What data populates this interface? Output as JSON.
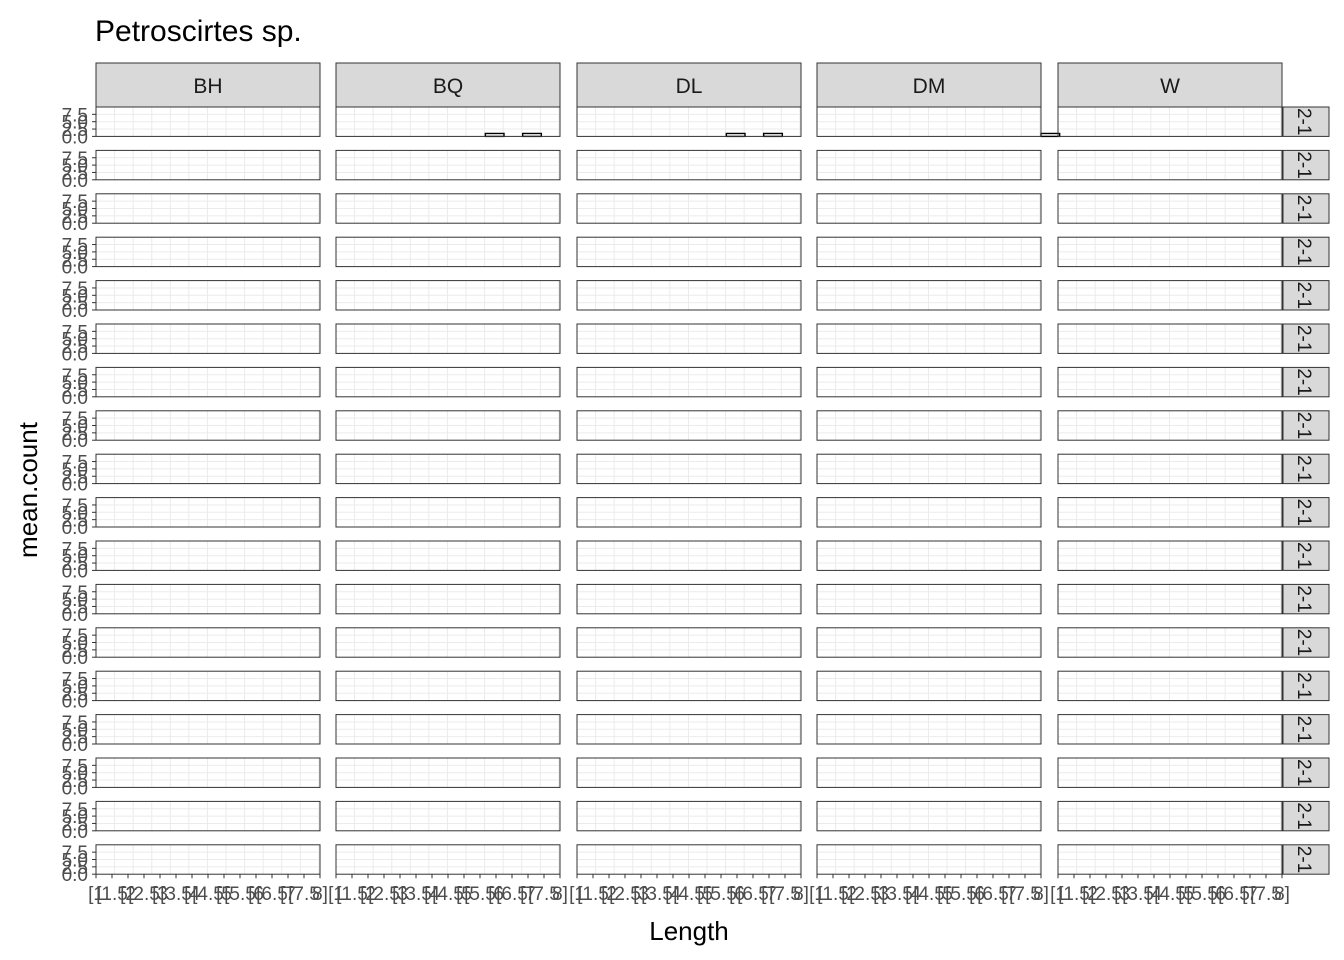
{
  "chart_data": {
    "type": "bar",
    "title": "Petroscirtes sp.",
    "xlabel": "Length",
    "ylabel": "mean.count",
    "ylim": [
      0,
      10
    ],
    "y_ticks": [
      "0.0",
      "2.5",
      "5.0",
      "7.5"
    ],
    "x_tick_labels": [
      "[1",
      "[1.5",
      "[2",
      "[2.5",
      "[3",
      "[3.5",
      "[4",
      "[4.5",
      "[5",
      "[5.5",
      "[6",
      "[6.5",
      "[7",
      "[7.5",
      "8]"
    ],
    "bins": [
      "[1,1.5)",
      "[1.5,2)",
      "[2,2.5)",
      "[2.5,3)",
      "[3,3.5)",
      "[3.5,4)",
      "[4,4.5)",
      "[4.5,5)",
      "[5,5.5)",
      "[5.5,6)",
      "[6,6.5)",
      "[6.5,7)",
      "[7,7.5)",
      "[7.5,8]"
    ],
    "columns": [
      "BH",
      "BQ",
      "DL",
      "DM",
      "W"
    ],
    "row_strip_label": "2-1",
    "grid": true,
    "panels": [
      [
        [
          0,
          0,
          0,
          0,
          0,
          0,
          0,
          0,
          0,
          0,
          0,
          0,
          0,
          0
        ],
        [
          0,
          0,
          0,
          0,
          0,
          0,
          0,
          0,
          1,
          0,
          1,
          0,
          0,
          0
        ],
        [
          0,
          0,
          0,
          0,
          0,
          0,
          0,
          0,
          1,
          0,
          1,
          0,
          0,
          0
        ],
        [
          0,
          0,
          0,
          0,
          0,
          0,
          0,
          0,
          0,
          0,
          0,
          0,
          1,
          0
        ],
        [
          0,
          0,
          0,
          0,
          0,
          0,
          0,
          0,
          0,
          0,
          0,
          0,
          0,
          0
        ]
      ],
      [
        [
          0,
          0,
          0,
          0,
          0,
          0,
          0,
          0,
          0,
          0,
          0,
          0,
          0,
          0
        ],
        [
          0,
          0,
          0,
          0,
          0,
          0,
          0,
          0,
          0,
          0,
          0,
          0,
          0,
          0
        ],
        [
          0,
          0,
          0,
          0,
          0,
          0,
          0,
          0,
          0,
          0,
          0,
          0,
          0,
          0
        ],
        [
          0,
          0,
          0,
          0,
          0,
          0,
          0,
          0,
          0,
          0,
          0,
          0,
          0,
          0
        ],
        [
          0,
          0,
          0,
          0,
          0,
          0,
          0,
          0,
          0,
          0,
          0,
          0,
          0,
          0
        ]
      ],
      [
        [
          0,
          0,
          0,
          0,
          0,
          0,
          0,
          0,
          0,
          0,
          0,
          0,
          0,
          0
        ],
        [
          0,
          0,
          0,
          0,
          0,
          0,
          0,
          0,
          0,
          0,
          0,
          0,
          0,
          0
        ],
        [
          0,
          0,
          0,
          0,
          0,
          0,
          0,
          0,
          0,
          0,
          0,
          0,
          0,
          0
        ],
        [
          0,
          0,
          0,
          0,
          0,
          0,
          0,
          0,
          0,
          0,
          0,
          0,
          0,
          0
        ],
        [
          0,
          0,
          0,
          0,
          0,
          0,
          0,
          0,
          0,
          0,
          0,
          0,
          0,
          0
        ]
      ],
      [
        [
          0,
          0,
          0,
          0,
          0,
          0,
          0,
          0,
          0,
          0,
          0,
          0,
          0,
          0
        ],
        [
          0,
          0,
          0,
          0,
          0,
          0,
          0,
          0,
          0,
          0,
          0,
          0,
          0,
          0
        ],
        [
          0,
          0,
          0,
          0,
          0,
          0,
          0,
          0,
          0,
          0,
          0,
          0,
          0,
          0
        ],
        [
          0,
          0,
          0,
          0,
          0,
          0,
          0,
          0,
          0,
          0,
          0,
          0,
          0,
          0
        ],
        [
          0,
          0,
          0,
          0,
          0,
          0,
          0,
          0,
          0,
          0,
          0,
          0,
          0,
          0
        ]
      ],
      [
        [
          0,
          0,
          0,
          0,
          0,
          0,
          0,
          0,
          0,
          0,
          0,
          0,
          0,
          0
        ],
        [
          0,
          0,
          0,
          0,
          0,
          0,
          0,
          0,
          0,
          0,
          0,
          0,
          0,
          0
        ],
        [
          0,
          0,
          0,
          0,
          0,
          0,
          0,
          0,
          0,
          0,
          0,
          0,
          0,
          0
        ],
        [
          0,
          0,
          0,
          0,
          0,
          0,
          0,
          0,
          0,
          0,
          0,
          0,
          0,
          0
        ],
        [
          0,
          0,
          0,
          0,
          0,
          0,
          0,
          0,
          0,
          0,
          0,
          0,
          0,
          0
        ]
      ],
      [
        [
          0,
          0,
          0,
          0,
          0,
          0,
          0,
          0,
          0,
          0,
          0,
          0,
          0,
          0
        ],
        [
          0,
          0,
          0,
          0,
          0,
          0,
          0,
          0,
          0,
          0,
          0,
          0,
          0,
          0
        ],
        [
          0,
          0,
          0,
          0,
          0,
          0,
          0,
          0,
          0,
          0,
          0,
          0,
          0,
          0
        ],
        [
          0,
          0,
          0,
          0,
          0,
          0,
          0,
          0,
          0,
          0,
          0,
          0,
          0,
          0
        ],
        [
          0,
          0,
          0,
          0,
          0,
          0,
          0,
          0,
          0,
          0,
          0,
          0,
          0,
          0
        ]
      ],
      [
        [
          0,
          0,
          0,
          0,
          0,
          0,
          0,
          0,
          0,
          0,
          0,
          0,
          0,
          0
        ],
        [
          0,
          0,
          0,
          0,
          0,
          0,
          0,
          0,
          0,
          0,
          0,
          0,
          0,
          0
        ],
        [
          0,
          0,
          0,
          0,
          0,
          0,
          0,
          0,
          0,
          0,
          0,
          0,
          0,
          0
        ],
        [
          0,
          0,
          0,
          0,
          0,
          0,
          0,
          0,
          0,
          0,
          0,
          0,
          0,
          0
        ],
        [
          0,
          0,
          0,
          0,
          0,
          0,
          0,
          0,
          0,
          0,
          0,
          0,
          0,
          0
        ]
      ],
      [
        [
          0,
          0,
          0,
          0,
          0,
          0,
          0,
          0,
          0,
          0,
          0,
          0,
          0,
          0
        ],
        [
          0,
          0,
          0,
          0,
          0,
          0,
          0,
          0,
          0,
          0,
          0,
          0,
          0,
          0
        ],
        [
          0,
          0,
          0,
          0,
          0,
          0,
          0,
          0,
          0,
          0,
          0,
          0,
          0,
          0
        ],
        [
          0,
          0,
          0,
          0,
          0,
          0,
          0,
          0,
          0,
          0,
          0,
          0,
          0,
          0
        ],
        [
          0,
          0,
          0,
          0,
          0,
          0,
          0,
          0,
          0,
          0,
          0,
          0,
          0,
          0
        ]
      ],
      [
        [
          0,
          0,
          0,
          0,
          0,
          0,
          0,
          0,
          0,
          0,
          0,
          0,
          0,
          0
        ],
        [
          0,
          0,
          0,
          0,
          0,
          0,
          0,
          0,
          0,
          0,
          0,
          0,
          0,
          0
        ],
        [
          0,
          0,
          0,
          0,
          0,
          0,
          0,
          0,
          0,
          0,
          0,
          0,
          0,
          0
        ],
        [
          0,
          0,
          0,
          0,
          0,
          0,
          0,
          0,
          0,
          0,
          0,
          0,
          0,
          0
        ],
        [
          0,
          0,
          0,
          0,
          0,
          0,
          0,
          0,
          0,
          0,
          0,
          0,
          0,
          0
        ]
      ],
      [
        [
          0,
          0,
          0,
          0,
          0,
          0,
          0,
          0,
          0,
          0,
          0,
          0,
          0,
          0
        ],
        [
          0,
          0,
          0,
          0,
          0,
          0,
          0,
          0,
          0,
          0,
          0,
          0,
          0,
          0
        ],
        [
          0,
          0,
          0,
          0,
          0,
          0,
          0,
          0,
          0,
          0,
          0,
          0,
          0,
          0
        ],
        [
          0,
          0,
          0,
          0,
          0,
          0,
          0,
          0,
          0,
          0,
          0,
          0,
          0,
          0
        ],
        [
          0,
          0,
          0,
          0,
          0,
          0,
          0,
          0,
          0,
          0,
          0,
          0,
          0,
          0
        ]
      ],
      [
        [
          0,
          0,
          0,
          0,
          0,
          0,
          0,
          0,
          0,
          0,
          0,
          0,
          0,
          0
        ],
        [
          0,
          0,
          0,
          0,
          0,
          0,
          0,
          0,
          0,
          0,
          0,
          0,
          0,
          0
        ],
        [
          0,
          0,
          0,
          0,
          0,
          0,
          0,
          0,
          0,
          0,
          0,
          0,
          0,
          0
        ],
        [
          0,
          0,
          0,
          0,
          0,
          0,
          0,
          0,
          0,
          0,
          0,
          0,
          0,
          0
        ],
        [
          0,
          0,
          0,
          0,
          0,
          0,
          0,
          0,
          0,
          0,
          0,
          0,
          0,
          0
        ]
      ],
      [
        [
          0,
          0,
          0,
          0,
          0,
          0,
          0,
          0,
          0,
          0,
          0,
          0,
          0,
          0
        ],
        [
          0,
          0,
          0,
          0,
          0,
          0,
          0,
          0,
          0,
          0,
          0,
          0,
          0,
          0
        ],
        [
          0,
          0,
          0,
          0,
          0,
          0,
          0,
          0,
          0,
          0,
          0,
          0,
          0,
          0
        ],
        [
          0,
          0,
          0,
          0,
          0,
          0,
          0,
          0,
          0,
          0,
          0,
          0,
          0,
          0
        ],
        [
          0,
          0,
          0,
          0,
          0,
          0,
          0,
          0,
          0,
          0,
          0,
          0,
          0,
          0
        ]
      ],
      [
        [
          0,
          0,
          0,
          0,
          0,
          0,
          0,
          0,
          0,
          0,
          0,
          0,
          0,
          0
        ],
        [
          0,
          0,
          0,
          0,
          0,
          0,
          0,
          0,
          0,
          0,
          0,
          0,
          0,
          0
        ],
        [
          0,
          0,
          0,
          0,
          0,
          0,
          0,
          0,
          0,
          0,
          0,
          0,
          0,
          0
        ],
        [
          0,
          0,
          0,
          0,
          0,
          0,
          0,
          0,
          0,
          0,
          0,
          0,
          0,
          0
        ],
        [
          0,
          0,
          0,
          0,
          0,
          0,
          0,
          0,
          0,
          0,
          0,
          0,
          0,
          0
        ]
      ],
      [
        [
          0,
          0,
          0,
          0,
          0,
          0,
          0,
          0,
          0,
          0,
          0,
          0,
          0,
          0
        ],
        [
          0,
          0,
          0,
          0,
          0,
          0,
          0,
          0,
          0,
          0,
          0,
          0,
          0,
          0
        ],
        [
          0,
          0,
          0,
          0,
          0,
          0,
          0,
          0,
          0,
          0,
          0,
          0,
          0,
          0
        ],
        [
          0,
          0,
          0,
          0,
          0,
          0,
          0,
          0,
          0,
          0,
          0,
          0,
          0,
          0
        ],
        [
          0,
          0,
          0,
          0,
          0,
          0,
          0,
          0,
          0,
          0,
          0,
          0,
          0,
          0
        ]
      ],
      [
        [
          0,
          0,
          0,
          0,
          0,
          0,
          0,
          0,
          0,
          0,
          0,
          0,
          0,
          0
        ],
        [
          0,
          0,
          0,
          0,
          0,
          0,
          0,
          0,
          0,
          0,
          0,
          0,
          0,
          0
        ],
        [
          0,
          0,
          0,
          0,
          0,
          0,
          0,
          0,
          0,
          0,
          0,
          0,
          0,
          0
        ],
        [
          0,
          0,
          0,
          0,
          0,
          0,
          0,
          0,
          0,
          0,
          0,
          0,
          0,
          0
        ],
        [
          0,
          0,
          0,
          0,
          0,
          0,
          0,
          0,
          0,
          0,
          0,
          0,
          0,
          0
        ]
      ],
      [
        [
          0,
          0,
          0,
          0,
          0,
          0,
          0,
          0,
          0,
          0,
          0,
          0,
          0,
          0
        ],
        [
          0,
          0,
          0,
          0,
          0,
          0,
          0,
          0,
          0,
          0,
          0,
          0,
          0,
          0
        ],
        [
          0,
          0,
          0,
          0,
          0,
          0,
          0,
          0,
          0,
          0,
          0,
          0,
          0,
          0
        ],
        [
          0,
          0,
          0,
          0,
          0,
          0,
          0,
          0,
          0,
          0,
          0,
          0,
          0,
          0
        ],
        [
          0,
          0,
          0,
          0,
          0,
          0,
          0,
          0,
          0,
          0,
          0,
          0,
          0,
          0
        ]
      ],
      [
        [
          0,
          0,
          0,
          0,
          0,
          0,
          0,
          0,
          0,
          0,
          0,
          0,
          0,
          0
        ],
        [
          0,
          0,
          0,
          0,
          0,
          0,
          0,
          0,
          0,
          0,
          0,
          0,
          0,
          0
        ],
        [
          0,
          0,
          0,
          0,
          0,
          0,
          0,
          0,
          0,
          0,
          0,
          0,
          0,
          0
        ],
        [
          0,
          0,
          0,
          0,
          0,
          0,
          0,
          0,
          0,
          0,
          0,
          0,
          0,
          0
        ],
        [
          0,
          0,
          0,
          0,
          0,
          0,
          0,
          0,
          0,
          0,
          0,
          0,
          0,
          0
        ]
      ],
      [
        [
          0,
          0,
          0,
          0,
          0,
          0,
          0,
          0,
          0,
          0,
          0,
          0,
          0,
          0
        ],
        [
          0,
          0,
          0,
          0,
          0,
          0,
          0,
          0,
          0,
          0,
          0,
          0,
          0,
          0
        ],
        [
          0,
          0,
          0,
          0,
          0,
          0,
          0,
          0,
          0,
          0,
          0,
          0,
          0,
          0
        ],
        [
          0,
          0,
          0,
          0,
          0,
          0,
          0,
          0,
          0,
          0,
          0,
          0,
          0,
          0
        ],
        [
          0,
          0,
          0,
          0,
          0,
          0,
          0,
          0,
          0,
          0,
          0,
          0,
          0,
          0
        ]
      ]
    ],
    "colors": {
      "bar_fill": "#ffffff",
      "bar_stroke": "#000000",
      "strip_fill": "#d9d9d9",
      "grid": "#ebebeb"
    }
  }
}
